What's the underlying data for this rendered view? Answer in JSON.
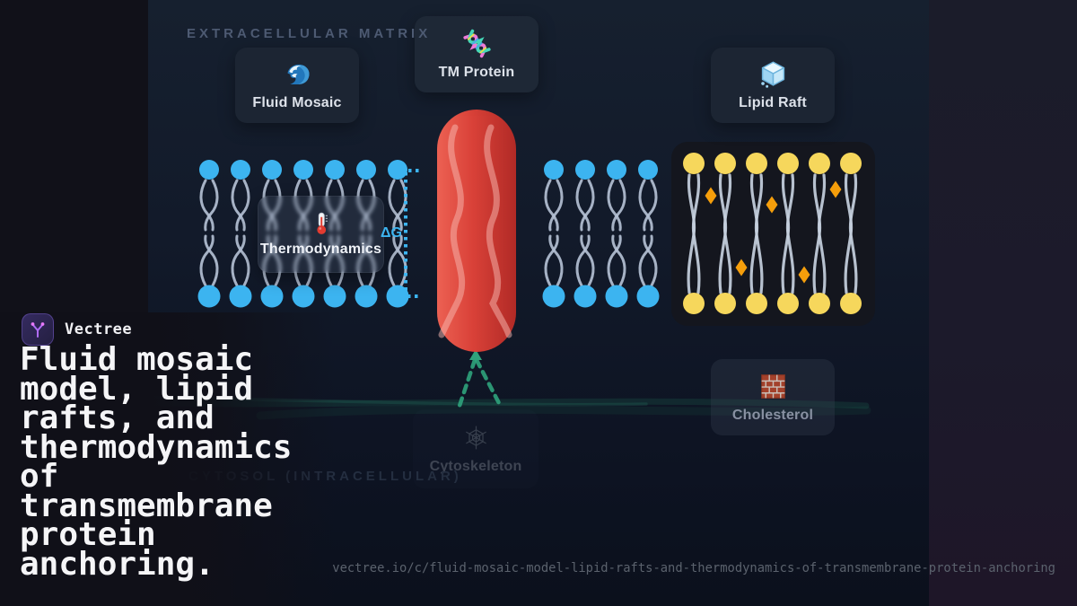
{
  "brand": {
    "name": "Vectree",
    "logo_icon": "vectree-branch-icon"
  },
  "title": "Fluid mosaic model, lipid rafts, and thermodynamics of transmembrane protein anchoring.",
  "footer": {
    "url": "vectree.io/c/fluid-mosaic-model-lipid-rafts-and-thermodynamics-of-transmembrane-protein-anchoring"
  },
  "regions": {
    "extracellular": "EXTRACELLULAR MATRIX",
    "cytosol": "CYTOSOL (INTRACELLULAR)"
  },
  "cards": {
    "fluid_mosaic": {
      "icon": "wave-icon",
      "label": "Fluid Mosaic"
    },
    "tm_protein": {
      "icon": "dna-icon",
      "label": "TM Protein"
    },
    "lipid_raft": {
      "icon": "ice-cube-icon",
      "label": "Lipid Raft"
    },
    "thermodynamics": {
      "icon": "thermometer-icon",
      "label": "Thermodynamics"
    },
    "cholesterol": {
      "icon": "brick-icon",
      "label": "Cholesterol"
    },
    "cytoskeleton": {
      "icon": "spider-web-icon",
      "label": "Cytoskeleton"
    }
  },
  "annotations": {
    "delta_g": "ΔG"
  },
  "colors": {
    "lipid_head_blue": "#3cb4f0",
    "lipid_head_yellow": "#f6d75c",
    "tail_gray": "#b3bfd2",
    "raft_tail_gray": "#c6d0de",
    "cholesterol_orange": "#f59e0b",
    "protein_red": "#d84038",
    "anchor_green": "#2fa37c",
    "delta_g_blue": "#3cb4f0"
  }
}
